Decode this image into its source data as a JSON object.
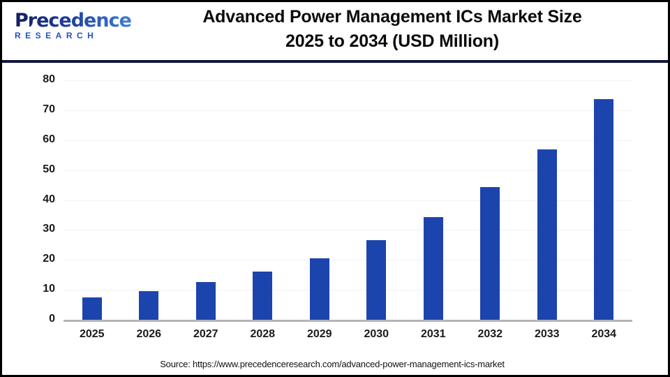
{
  "header": {
    "logo": {
      "line1": "Precedence",
      "line2": "RESEARCH"
    },
    "title_line1": "Advanced Power Management ICs Market Size",
    "title_line2": "2025 to 2034 (USD Million)"
  },
  "chart_data": {
    "type": "bar",
    "title": "Advanced Power Management ICs Market Size 2025 to 2034 (USD Million)",
    "unit": "USD Million",
    "categories": [
      "2025",
      "2026",
      "2027",
      "2028",
      "2029",
      "2030",
      "2031",
      "2032",
      "2033",
      "2034"
    ],
    "values": [
      7.5,
      9.5,
      12.6,
      16.0,
      20.6,
      26.6,
      34.2,
      44.4,
      57.0,
      73.6
    ],
    "ylim": [
      0,
      80
    ],
    "yticks": [
      0,
      10,
      20,
      30,
      40,
      50,
      60,
      70,
      80
    ],
    "xlabel": "",
    "ylabel": "",
    "grid": true,
    "legend_position": "none",
    "bar_color": "#1c44ad"
  },
  "footer": {
    "source_text": "Source: https://www.precedenceresearch.com/advanced-power-management-ics-market"
  },
  "colors": {
    "bar": "#1c44ad",
    "header_rule": "#10163f",
    "axis_line": "#b5b5b5",
    "gridline": "#f1f1f1",
    "logo_navy": "#151d5e",
    "logo_blue": "#3c7fd6",
    "text": "#0a0a0a"
  }
}
